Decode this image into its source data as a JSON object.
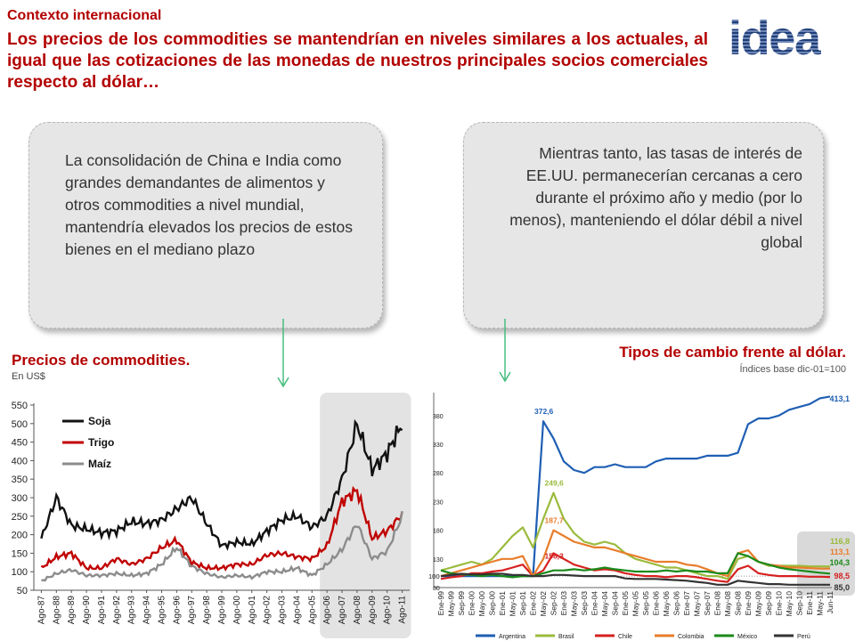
{
  "header": {
    "section": "Contexto internacional",
    "headline": "Los precios de los commodities se mantendrían en niveles similares a los actuales, al igual que las cotizaciones de las monedas de nuestros principales socios comerciales respecto al dólar…",
    "logo_text": "idea"
  },
  "bubbles": {
    "left": "La consolidación de China e India como grandes demandantes de alimentos y otros commodities a nivel mundial, mantendría elevados los precios de estos bienes en el mediano plazo",
    "right": "Mientras tanto, las tasas de interés de EE.UU. permanecerían cercanas a cero durante el próximo año y medio (por lo menos), manteniendo el dólar débil a nivel global"
  },
  "colors": {
    "accent": "#b30000",
    "arrow": "#3cb878",
    "bubble": "#e6e6e6"
  },
  "chart_data": [
    {
      "type": "line",
      "title": "Precios de commodities.",
      "subtitle": "En US$",
      "ylim": [
        50,
        550
      ],
      "yticks": [
        50,
        100,
        150,
        200,
        250,
        300,
        350,
        400,
        450,
        500,
        550
      ],
      "grid": false,
      "legend": "top-left",
      "highlight_range": [
        "Ago-06",
        "Ago-11"
      ],
      "x": [
        "Ago-87",
        "Ago-88",
        "Ago-89",
        "Ago-90",
        "Ago-91",
        "Ago-92",
        "Ago-93",
        "Ago-94",
        "Ago-95",
        "Ago-96",
        "Ago-97",
        "Ago-98",
        "Ago-99",
        "Ago-00",
        "Ago-01",
        "Ago-02",
        "Ago-03",
        "Ago-04",
        "Ago-05",
        "Ago-06",
        "Ago-07",
        "Ago-08",
        "Ago-09",
        "Ago-10",
        "Ago-11"
      ],
      "series": [
        {
          "name": "Soja",
          "color": "#111111",
          "values": [
            190,
            300,
            225,
            215,
            205,
            210,
            235,
            230,
            240,
            270,
            300,
            230,
            170,
            180,
            175,
            210,
            240,
            250,
            220,
            250,
            350,
            500,
            375,
            420,
            500
          ]
        },
        {
          "name": "Trigo",
          "color": "#c00000",
          "values": [
            110,
            140,
            150,
            110,
            110,
            135,
            120,
            135,
            165,
            185,
            125,
            110,
            110,
            120,
            120,
            145,
            150,
            140,
            135,
            170,
            290,
            320,
            190,
            210,
            255
          ]
        },
        {
          "name": "Maíz",
          "color": "#8c8c8c",
          "values": [
            75,
            95,
            105,
            90,
            90,
            95,
            90,
            95,
            120,
            165,
            115,
            95,
            85,
            90,
            85,
            100,
            100,
            110,
            90,
            120,
            160,
            230,
            135,
            155,
            250
          ]
        }
      ]
    },
    {
      "type": "line",
      "title": "Tipos de cambio frente al dólar.",
      "subtitle": "Índices base dic-01=100",
      "ylim": [
        80,
        420
      ],
      "yticks": [
        80,
        130,
        180,
        230,
        280,
        330,
        380
      ],
      "grid": false,
      "legend": "bottom",
      "x": [
        "Ene-99",
        "May-99",
        "Sep-99",
        "Ene-00",
        "May-00",
        "Sep-00",
        "Ene-01",
        "May-01",
        "Sep-01",
        "Ene-02",
        "May-02",
        "Sep-02",
        "Ene-03",
        "May-03",
        "Sep-03",
        "Ene-04",
        "May-04",
        "Sep-04",
        "Ene-05",
        "May-05",
        "Sep-05",
        "Ene-06",
        "May-06",
        "Sep-06",
        "Ene-07",
        "May-07",
        "Sep-07",
        "Ene-08",
        "May-08",
        "Sep-08",
        "Ene-09",
        "May-09",
        "Sep-09",
        "Ene-10",
        "May-10",
        "Sep-10",
        "Ene-11",
        "May-11",
        "Jun-11"
      ],
      "annotations": [
        "372,6",
        "249,6",
        "187,7",
        "156,3",
        "100"
      ],
      "series": [
        {
          "name": "Argentina",
          "color": "#1f5fb4",
          "end_label": "413,1",
          "values": [
            100,
            100,
            100,
            100,
            100,
            100,
            100,
            100,
            100,
            100,
            370,
            340,
            300,
            285,
            280,
            290,
            290,
            295,
            290,
            290,
            290,
            300,
            305,
            305,
            305,
            305,
            310,
            310,
            310,
            315,
            365,
            375,
            375,
            380,
            390,
            395,
            400,
            410,
            413.1
          ]
        },
        {
          "name": "Brasil",
          "color": "#9bbb3c",
          "end_label": "116,8",
          "values": [
            110,
            115,
            120,
            125,
            120,
            130,
            150,
            170,
            185,
            150,
            200,
            245,
            200,
            175,
            160,
            155,
            160,
            155,
            140,
            130,
            125,
            120,
            115,
            115,
            110,
            105,
            100,
            100,
            95,
            130,
            135,
            125,
            118,
            118,
            118,
            118,
            117,
            117,
            116.8
          ]
        },
        {
          "name": "Chile",
          "color": "#d62020",
          "end_label": "98,5",
          "values": [
            95,
            98,
            100,
            105,
            105,
            108,
            110,
            115,
            120,
            100,
            110,
            140,
            130,
            120,
            115,
            110,
            112,
            110,
            105,
            102,
            100,
            100,
            98,
            100,
            100,
            98,
            95,
            92,
            90,
            112,
            118,
            105,
            102,
            100,
            100,
            100,
            99,
            99,
            98.5
          ]
        },
        {
          "name": "Colombia",
          "color": "#e87d2b",
          "end_label": "113,1",
          "values": [
            100,
            105,
            110,
            115,
            120,
            125,
            130,
            130,
            135,
            100,
            130,
            180,
            170,
            160,
            155,
            150,
            150,
            145,
            140,
            135,
            130,
            125,
            125,
            125,
            120,
            118,
            112,
            105,
            100,
            140,
            145,
            125,
            120,
            118,
            115,
            115,
            114,
            113,
            113.1
          ]
        },
        {
          "name": "México",
          "color": "#1a8a1a",
          "end_label": "104,3",
          "values": [
            110,
            105,
            103,
            102,
            100,
            102,
            100,
            98,
            100,
            100,
            105,
            110,
            110,
            112,
            110,
            112,
            115,
            112,
            110,
            108,
            108,
            108,
            110,
            108,
            110,
            108,
            108,
            105,
            105,
            140,
            135,
            125,
            120,
            115,
            112,
            110,
            108,
            106,
            104.3
          ]
        },
        {
          "name": "Perú",
          "color": "#333333",
          "end_label": "85,0",
          "values": [
            100,
            102,
            104,
            103,
            103,
            104,
            104,
            102,
            102,
            100,
            100,
            102,
            102,
            101,
            100,
            100,
            100,
            100,
            96,
            95,
            95,
            95,
            94,
            93,
            92,
            90,
            88,
            85,
            85,
            92,
            90,
            88,
            86,
            86,
            85,
            85,
            85,
            85,
            85.0
          ]
        }
      ]
    }
  ]
}
